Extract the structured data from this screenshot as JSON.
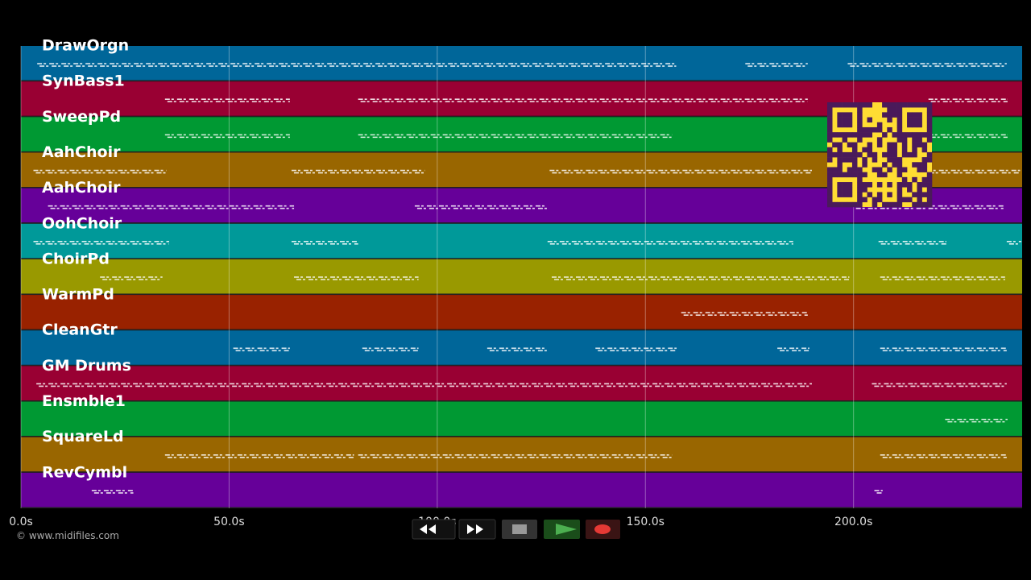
{
  "timeline": {
    "xlim": [
      0,
      240.5
    ],
    "xticks": [
      {
        "value": 0,
        "label": "0.0s"
      },
      {
        "value": 50,
        "label": "50.0s"
      },
      {
        "value": 100,
        "label": "100.0s"
      },
      {
        "value": 150,
        "label": "150.0s"
      },
      {
        "value": 200,
        "label": "200.0s"
      }
    ],
    "tracks": [
      {
        "name": "DrawOrgn",
        "color": "#006699",
        "spans": [
          [
            3.9,
            157.4
          ],
          [
            174,
            189
          ],
          [
            198.6,
            236.8
          ]
        ]
      },
      {
        "name": "SynBass1",
        "color": "#990033",
        "spans": [
          [
            34.6,
            64.6
          ],
          [
            81,
            189
          ],
          [
            218,
            237
          ]
        ]
      },
      {
        "name": "SweepPd",
        "color": "#009933",
        "spans": [
          [
            34.6,
            64.6
          ],
          [
            81,
            156.5
          ],
          [
            218,
            237
          ]
        ]
      },
      {
        "name": "AahChoir",
        "color": "#996600",
        "spans": [
          [
            3,
            35
          ],
          [
            65,
            97
          ],
          [
            127,
            190
          ],
          [
            206,
            240
          ]
        ]
      },
      {
        "name": "AahChoir",
        "color": "#660099",
        "spans": [
          [
            6.5,
            65.6
          ],
          [
            94.6,
            126.5
          ],
          [
            200,
            236
          ]
        ]
      },
      {
        "name": "OohChoir",
        "color": "#009999",
        "spans": [
          [
            3,
            35.6
          ],
          [
            65,
            81
          ],
          [
            126.5,
            185.5
          ],
          [
            206,
            222.3
          ],
          [
            236.8,
            240.3
          ]
        ]
      },
      {
        "name": "ChoirPd",
        "color": "#999900",
        "spans": [
          [
            19,
            34
          ],
          [
            65.6,
            95.5
          ],
          [
            127.5,
            199
          ],
          [
            206.4,
            236.4
          ]
        ]
      },
      {
        "name": "WarmPd",
        "color": "#992200",
        "spans": [
          [
            158.6,
            189
          ]
        ]
      },
      {
        "name": "CleanGtr",
        "color": "#006699",
        "spans": [
          [
            51,
            64.6
          ],
          [
            82,
            95.5
          ],
          [
            112,
            126.5
          ],
          [
            138,
            157.5
          ],
          [
            181.7,
            189.4
          ],
          [
            206.4,
            236.8
          ]
        ]
      },
      {
        "name": "GM Drums",
        "color": "#990033",
        "spans": [
          [
            3.7,
            190
          ],
          [
            204.4,
            236.8
          ]
        ]
      },
      {
        "name": "Ensmble1",
        "color": "#009933",
        "spans": [
          [
            222,
            237
          ]
        ]
      },
      {
        "name": "SquareLd",
        "color": "#996600",
        "spans": [
          [
            34.6,
            80
          ],
          [
            81,
            156.5
          ],
          [
            206.4,
            236.8
          ]
        ]
      },
      {
        "name": "RevCymbl",
        "color": "#660099",
        "spans": [
          [
            17,
            27
          ],
          [
            205,
            207
          ]
        ]
      }
    ]
  },
  "footer": {
    "copyright": "© www.midifiles.com"
  }
}
